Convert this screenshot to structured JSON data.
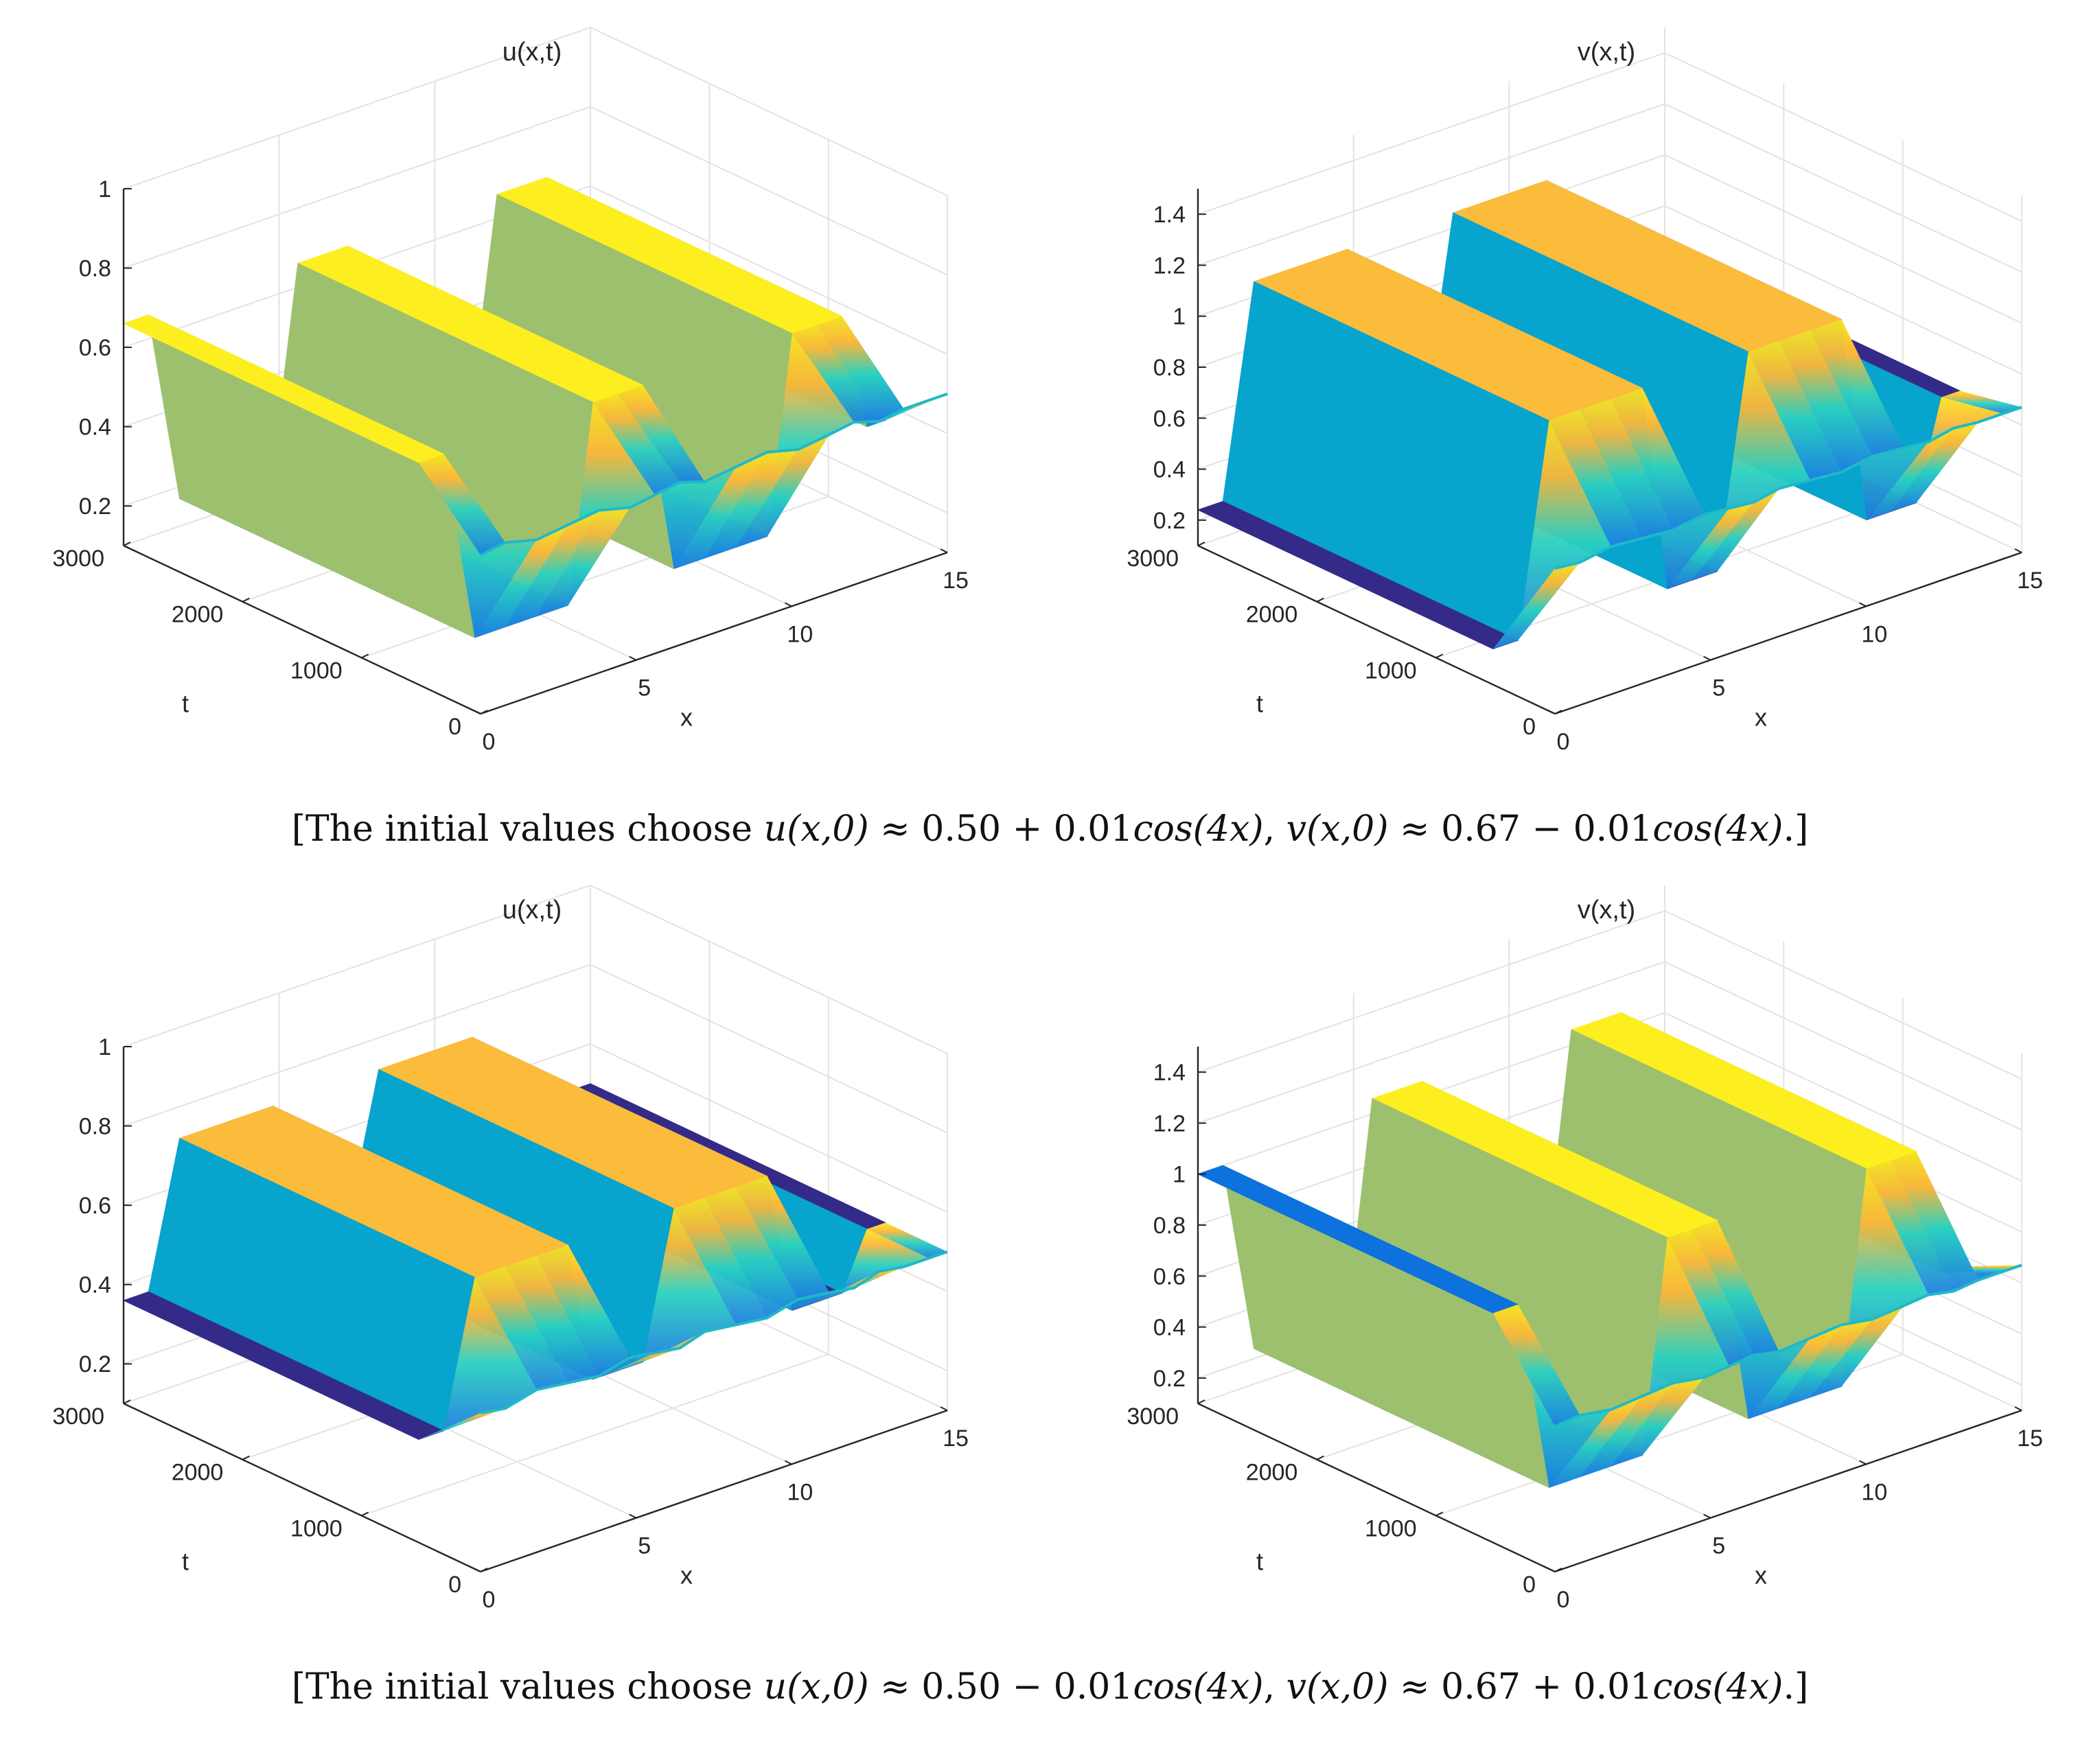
{
  "figure_title": "",
  "panels": {
    "top_left": {
      "title": "u(x,t)"
    },
    "top_right": {
      "title": "v(x,t)"
    },
    "bottom_left": {
      "title": "u(x,t)"
    },
    "bottom_right": {
      "title": "v(x,t)"
    }
  },
  "captions": {
    "top": {
      "prefix": "[The initial values choose ",
      "u_expr": "u(x,0)",
      "u_rhs": " ≈ 0.50 + 0.01",
      "u_cos": "cos(4x)",
      "sep": ", ",
      "v_expr": "v(x,0)",
      "v_rhs": " ≈ 0.67 − 0.01",
      "v_cos": "cos(4x)",
      "suffix": ".]"
    },
    "bottom": {
      "prefix": "[The initial values choose ",
      "u_expr": "u(x,0)",
      "u_rhs": " ≈ 0.50 − 0.01",
      "u_cos": "cos(4x)",
      "sep": ", ",
      "v_expr": "v(x,0)",
      "v_rhs": " ≈ 0.67 + 0.01",
      "v_cos": "cos(4x)",
      "suffix": ".]"
    }
  },
  "chart_data": [
    {
      "type": "surface3d",
      "panel": "top-left",
      "title": "u(x,t)",
      "xlabel": "x",
      "ylabel": "t",
      "zlabel": "",
      "xlim": [
        0,
        15
      ],
      "ylim": [
        0,
        3000
      ],
      "zlim": [
        0.1,
        1
      ],
      "xticks": [
        0,
        5,
        10,
        15
      ],
      "yticks": [
        0,
        1000,
        2000,
        3000
      ],
      "zticks": [
        0.2,
        0.4,
        0.6,
        0.8,
        1
      ],
      "xtick_labels": [
        "0",
        "5",
        "10",
        "15"
      ],
      "ytick_labels": [
        "0",
        "1000",
        "2000",
        "3000"
      ],
      "ztick_labels": [
        "0.2",
        "0.4",
        "0.6",
        "0.8",
        "1"
      ],
      "profile_x": [
        0,
        0.8,
        1.8,
        2.8,
        3.8,
        4.8,
        5.6,
        6.4,
        7.2,
        8.2,
        9.2,
        10.2,
        11.2,
        12.0,
        12.8,
        13.6,
        14.4,
        15.0
      ],
      "profile_z_steady": [
        0.66,
        0.66,
        0.17,
        0.17,
        0.17,
        0.17,
        0.66,
        0.66,
        0.66,
        0.17,
        0.17,
        0.17,
        0.17,
        0.66,
        0.66,
        0.66,
        0.36,
        0.36
      ],
      "profile_z_initial": [
        0.5,
        0.51,
        0.49,
        0.5,
        0.51,
        0.49,
        0.5,
        0.51,
        0.49,
        0.5,
        0.51,
        0.49,
        0.5,
        0.51,
        0.49,
        0.5,
        0.5,
        0.5
      ]
    },
    {
      "type": "surface3d",
      "panel": "top-right",
      "title": "v(x,t)",
      "xlabel": "x",
      "ylabel": "t",
      "zlabel": "",
      "xlim": [
        0,
        15
      ],
      "ylim": [
        0,
        3000
      ],
      "zlim": [
        0.1,
        1.5
      ],
      "xticks": [
        0,
        5,
        10,
        15
      ],
      "yticks": [
        0,
        1000,
        2000,
        3000
      ],
      "zticks": [
        0.2,
        0.4,
        0.6,
        0.8,
        1,
        1.2,
        1.4
      ],
      "xtick_labels": [
        "0",
        "5",
        "10",
        "15"
      ],
      "ytick_labels": [
        "0",
        "1000",
        "2000",
        "3000"
      ],
      "ztick_labels": [
        "0.2",
        "0.4",
        "0.6",
        "0.8",
        "1",
        "1.2",
        "1.4"
      ],
      "profile_x": [
        0,
        0.8,
        1.8,
        2.8,
        3.8,
        4.8,
        5.6,
        6.4,
        7.2,
        8.2,
        9.2,
        10.2,
        11.2,
        12.0,
        12.8,
        13.6,
        14.4,
        15.0
      ],
      "profile_z_steady": [
        0.24,
        0.24,
        1.06,
        1.06,
        1.06,
        1.06,
        0.24,
        0.24,
        0.24,
        1.06,
        1.06,
        1.06,
        1.06,
        0.24,
        0.24,
        0.24,
        0.62,
        0.62
      ],
      "profile_z_initial": [
        0.67,
        0.66,
        0.68,
        0.67,
        0.66,
        0.68,
        0.67,
        0.66,
        0.68,
        0.67,
        0.66,
        0.68,
        0.67,
        0.66,
        0.68,
        0.67,
        0.67,
        0.67
      ]
    },
    {
      "type": "surface3d",
      "panel": "bottom-left",
      "title": "u(x,t)",
      "xlabel": "x",
      "ylabel": "t",
      "zlabel": "",
      "xlim": [
        0,
        15
      ],
      "ylim": [
        0,
        3000
      ],
      "zlim": [
        0.1,
        1
      ],
      "xticks": [
        0,
        5,
        10,
        15
      ],
      "yticks": [
        0,
        1000,
        2000,
        3000
      ],
      "zticks": [
        0.2,
        0.4,
        0.6,
        0.8,
        1
      ],
      "xtick_labels": [
        "0",
        "5",
        "10",
        "15"
      ],
      "ytick_labels": [
        "0",
        "1000",
        "2000",
        "3000"
      ],
      "ztick_labels": [
        "0.2",
        "0.4",
        "0.6",
        "0.8",
        "1"
      ],
      "profile_x": [
        0,
        0.8,
        1.8,
        2.8,
        3.8,
        4.8,
        5.6,
        6.4,
        7.2,
        8.2,
        9.2,
        10.2,
        11.2,
        12.0,
        12.8,
        13.6,
        14.4,
        15.0
      ],
      "profile_z_steady": [
        0.36,
        0.36,
        0.72,
        0.72,
        0.72,
        0.72,
        0.36,
        0.36,
        0.36,
        0.72,
        0.72,
        0.72,
        0.72,
        0.36,
        0.36,
        0.36,
        0.5,
        0.5
      ],
      "profile_z_initial": [
        0.5,
        0.49,
        0.51,
        0.5,
        0.49,
        0.51,
        0.5,
        0.49,
        0.51,
        0.5,
        0.49,
        0.51,
        0.5,
        0.49,
        0.51,
        0.5,
        0.5,
        0.5
      ]
    },
    {
      "type": "surface3d",
      "panel": "bottom-right",
      "title": "v(x,t)",
      "xlabel": "x",
      "ylabel": "t",
      "zlabel": "",
      "xlim": [
        0,
        15
      ],
      "ylim": [
        0,
        3000
      ],
      "zlim": [
        0.1,
        1.5
      ],
      "xticks": [
        0,
        5,
        10,
        15
      ],
      "yticks": [
        0,
        1000,
        2000,
        3000
      ],
      "zticks": [
        0.2,
        0.4,
        0.6,
        0.8,
        1,
        1.2,
        1.4
      ],
      "xtick_labels": [
        "0",
        "5",
        "10",
        "15"
      ],
      "ytick_labels": [
        "0",
        "1000",
        "2000",
        "3000"
      ],
      "ztick_labels": [
        "0.2",
        "0.4",
        "0.6",
        "0.8",
        "1",
        "1.2",
        "1.4"
      ],
      "profile_x": [
        0,
        0.8,
        1.8,
        2.8,
        3.8,
        4.8,
        5.6,
        6.4,
        7.2,
        8.2,
        9.2,
        10.2,
        11.2,
        12.0,
        12.8,
        13.6,
        14.4,
        15.0
      ],
      "profile_z_steady": [
        1.0,
        1.0,
        0.24,
        0.24,
        0.24,
        0.24,
        1.06,
        1.06,
        1.06,
        0.24,
        0.24,
        0.24,
        0.24,
        1.06,
        1.06,
        1.06,
        0.55,
        0.55
      ],
      "profile_z_initial": [
        0.67,
        0.68,
        0.66,
        0.67,
        0.68,
        0.66,
        0.67,
        0.68,
        0.66,
        0.67,
        0.68,
        0.66,
        0.67,
        0.68,
        0.66,
        0.67,
        0.67,
        0.67
      ]
    }
  ],
  "colors": {
    "ridge_a": "#fdef1f",
    "ridge_b": "#fbbb3b",
    "face_a": "#9dc06e",
    "face_b": "#07a4cd",
    "valley_a": "#0d72dd",
    "valley_b": "#342a87",
    "edge": "#000000",
    "grid": "#e3e3e3"
  }
}
